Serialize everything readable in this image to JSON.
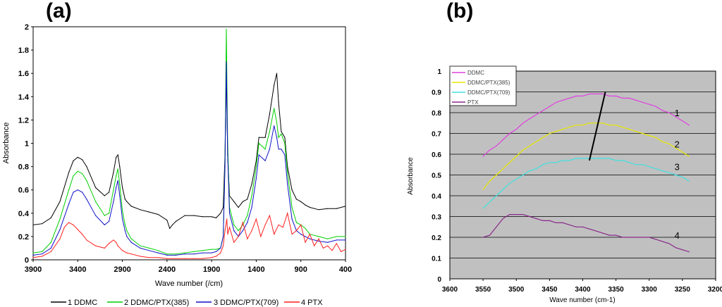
{
  "chart_data": [
    {
      "panel": "(a)",
      "type": "line",
      "xlabel": "Wave number (/cm)",
      "ylabel": "Absorbance",
      "xlim": [
        3900,
        400
      ],
      "ylim": [
        0,
        2
      ],
      "xticks": [
        "3900",
        "3400",
        "2900",
        "2400",
        "1900",
        "1400",
        "900",
        "400"
      ],
      "yticks": [
        "0",
        "0.2",
        "0.4",
        "0.6",
        "0.8",
        "1",
        "1.2",
        "1.4",
        "1.6",
        "1.8",
        "2"
      ],
      "legend_position": "bottom",
      "series": [
        {
          "name": "1 DDMC",
          "color": "#000000",
          "x": [
            3900,
            3800,
            3700,
            3600,
            3500,
            3450,
            3400,
            3350,
            3300,
            3200,
            3100,
            3050,
            3000,
            2970,
            2950,
            2930,
            2900,
            2870,
            2850,
            2800,
            2700,
            2600,
            2500,
            2400,
            2370,
            2340,
            2300,
            2200,
            2100,
            2000,
            1900,
            1850,
            1800,
            1770,
            1750,
            1735,
            1720,
            1700,
            1650,
            1600,
            1550,
            1500,
            1450,
            1400,
            1370,
            1300,
            1250,
            1200,
            1170,
            1150,
            1120,
            1080,
            1050,
            1000,
            950,
            900,
            850,
            800,
            700,
            600,
            500,
            400
          ],
          "y": [
            0.3,
            0.31,
            0.36,
            0.5,
            0.75,
            0.85,
            0.88,
            0.86,
            0.8,
            0.62,
            0.55,
            0.58,
            0.75,
            0.88,
            0.9,
            0.8,
            0.62,
            0.52,
            0.5,
            0.46,
            0.43,
            0.41,
            0.39,
            0.34,
            0.27,
            0.3,
            0.33,
            0.38,
            0.38,
            0.37,
            0.37,
            0.36,
            0.4,
            0.45,
            0.9,
            1.62,
            0.9,
            0.55,
            0.5,
            0.45,
            0.5,
            0.52,
            0.65,
            0.85,
            1.05,
            1.05,
            1.25,
            1.5,
            1.6,
            1.35,
            1.1,
            1.05,
            0.8,
            0.6,
            0.52,
            0.5,
            0.47,
            0.45,
            0.43,
            0.44,
            0.44,
            0.46
          ]
        },
        {
          "name": "2 DDMC/PTX(385)",
          "color": "#00d000",
          "x": [
            3900,
            3800,
            3700,
            3600,
            3500,
            3450,
            3400,
            3350,
            3300,
            3200,
            3100,
            3050,
            3000,
            2970,
            2950,
            2930,
            2900,
            2870,
            2850,
            2800,
            2700,
            2600,
            2500,
            2400,
            2300,
            2200,
            2100,
            2000,
            1900,
            1850,
            1800,
            1770,
            1750,
            1735,
            1720,
            1700,
            1650,
            1600,
            1550,
            1500,
            1450,
            1400,
            1370,
            1300,
            1250,
            1200,
            1170,
            1150,
            1120,
            1080,
            1050,
            1000,
            950,
            900,
            850,
            800,
            700,
            600,
            500,
            400
          ],
          "y": [
            0.06,
            0.07,
            0.15,
            0.35,
            0.6,
            0.72,
            0.76,
            0.74,
            0.68,
            0.5,
            0.38,
            0.4,
            0.6,
            0.72,
            0.78,
            0.65,
            0.42,
            0.3,
            0.25,
            0.18,
            0.12,
            0.1,
            0.08,
            0.05,
            0.05,
            0.06,
            0.07,
            0.08,
            0.09,
            0.09,
            0.1,
            0.2,
            0.85,
            1.98,
            1.0,
            0.45,
            0.3,
            0.25,
            0.3,
            0.38,
            0.55,
            0.8,
            1.0,
            0.95,
            1.1,
            1.3,
            1.18,
            1.05,
            1.08,
            1.0,
            0.75,
            0.45,
            0.32,
            0.3,
            0.27,
            0.22,
            0.2,
            0.18,
            0.2,
            0.2
          ]
        },
        {
          "name": "3 DDMC/PTX(709)",
          "color": "#1010c8",
          "x": [
            3900,
            3800,
            3700,
            3600,
            3500,
            3450,
            3400,
            3350,
            3300,
            3200,
            3100,
            3050,
            3000,
            2970,
            2950,
            2930,
            2900,
            2870,
            2850,
            2800,
            2700,
            2600,
            2500,
            2400,
            2300,
            2200,
            2100,
            2000,
            1900,
            1850,
            1800,
            1770,
            1750,
            1735,
            1720,
            1700,
            1650,
            1600,
            1550,
            1500,
            1450,
            1400,
            1370,
            1300,
            1250,
            1200,
            1170,
            1150,
            1120,
            1080,
            1050,
            1000,
            950,
            900,
            850,
            800,
            700,
            600,
            500,
            400
          ],
          "y": [
            0.04,
            0.05,
            0.1,
            0.26,
            0.48,
            0.58,
            0.6,
            0.58,
            0.52,
            0.38,
            0.3,
            0.33,
            0.5,
            0.62,
            0.68,
            0.55,
            0.35,
            0.25,
            0.2,
            0.15,
            0.1,
            0.08,
            0.06,
            0.04,
            0.04,
            0.05,
            0.05,
            0.06,
            0.06,
            0.07,
            0.1,
            0.2,
            0.8,
            1.7,
            0.9,
            0.4,
            0.25,
            0.2,
            0.25,
            0.32,
            0.45,
            0.7,
            0.9,
            0.85,
            0.95,
            1.15,
            1.05,
            0.95,
            0.95,
            0.9,
            0.65,
            0.35,
            0.25,
            0.22,
            0.2,
            0.18,
            0.16,
            0.15,
            0.17,
            0.17
          ]
        },
        {
          "name": "4 PTX",
          "color": "#ff2020",
          "x": [
            3900,
            3800,
            3700,
            3600,
            3550,
            3500,
            3450,
            3400,
            3350,
            3300,
            3200,
            3100,
            3050,
            3000,
            2970,
            2950,
            2900,
            2850,
            2800,
            2700,
            2600,
            2500,
            2400,
            2300,
            2200,
            2100,
            2000,
            1900,
            1850,
            1800,
            1770,
            1750,
            1730,
            1720,
            1700,
            1650,
            1600,
            1550,
            1500,
            1450,
            1400,
            1350,
            1300,
            1250,
            1200,
            1150,
            1100,
            1050,
            1000,
            950,
            900,
            850,
            800,
            750,
            700,
            650,
            600,
            550,
            500,
            450,
            400
          ],
          "y": [
            0.02,
            0.03,
            0.07,
            0.18,
            0.28,
            0.32,
            0.3,
            0.26,
            0.22,
            0.17,
            0.12,
            0.1,
            0.14,
            0.17,
            0.15,
            0.12,
            0.08,
            0.06,
            0.05,
            0.03,
            0.02,
            0.02,
            0.01,
            0.01,
            0.01,
            0.01,
            0.01,
            0.02,
            0.03,
            0.06,
            0.12,
            0.25,
            0.35,
            0.22,
            0.28,
            0.15,
            0.2,
            0.32,
            0.18,
            0.25,
            0.35,
            0.2,
            0.3,
            0.38,
            0.22,
            0.3,
            0.28,
            0.4,
            0.22,
            0.25,
            0.3,
            0.15,
            0.22,
            0.12,
            0.18,
            0.1,
            0.12,
            0.08,
            0.14,
            0.07,
            0.09
          ]
        }
      ]
    },
    {
      "panel": "(b)",
      "type": "line",
      "xlabel": "Wave number (cm-1)",
      "ylabel": "Absorbance",
      "xlim": [
        3600,
        3200
      ],
      "ylim": [
        0,
        1
      ],
      "xticks": [
        "3600",
        "3550",
        "3500",
        "3450",
        "3400",
        "3350",
        "3300",
        "3250",
        "3200"
      ],
      "yticks": [
        "0",
        "0.1",
        "0.2",
        "0.3",
        "0.4",
        "0.5",
        "0.6",
        "0.7",
        "0.8",
        "0.9",
        "1"
      ],
      "legend_position": "top-left",
      "plot_background": "#c0c0c0",
      "series": [
        {
          "name": "DDMC",
          "color": "#e040e0",
          "label": "1",
          "x": [
            3550,
            3540,
            3530,
            3520,
            3510,
            3500,
            3490,
            3480,
            3470,
            3460,
            3450,
            3440,
            3430,
            3420,
            3410,
            3400,
            3390,
            3380,
            3370,
            3360,
            3350,
            3340,
            3330,
            3320,
            3310,
            3300,
            3290,
            3280,
            3270,
            3260,
            3250,
            3240
          ],
          "y": [
            0.59,
            0.62,
            0.64,
            0.67,
            0.7,
            0.72,
            0.75,
            0.77,
            0.79,
            0.81,
            0.83,
            0.85,
            0.86,
            0.87,
            0.88,
            0.88,
            0.89,
            0.89,
            0.89,
            0.88,
            0.88,
            0.87,
            0.87,
            0.86,
            0.85,
            0.84,
            0.83,
            0.81,
            0.8,
            0.78,
            0.76,
            0.74
          ]
        },
        {
          "name": "DDMC/PTX(385)",
          "color": "#e8e800",
          "label": "2",
          "x": [
            3550,
            3540,
            3530,
            3520,
            3510,
            3500,
            3490,
            3480,
            3470,
            3460,
            3450,
            3440,
            3430,
            3420,
            3410,
            3400,
            3390,
            3380,
            3370,
            3360,
            3350,
            3340,
            3330,
            3320,
            3310,
            3300,
            3290,
            3280,
            3270,
            3260,
            3250,
            3240
          ],
          "y": [
            0.43,
            0.47,
            0.5,
            0.53,
            0.56,
            0.59,
            0.62,
            0.64,
            0.66,
            0.68,
            0.7,
            0.71,
            0.72,
            0.73,
            0.74,
            0.74,
            0.75,
            0.75,
            0.75,
            0.74,
            0.74,
            0.73,
            0.72,
            0.71,
            0.7,
            0.69,
            0.68,
            0.66,
            0.65,
            0.63,
            0.61,
            0.59
          ]
        },
        {
          "name": "DDMC/PTX(709)",
          "color": "#40e0e0",
          "label": "3",
          "x": [
            3550,
            3540,
            3530,
            3520,
            3510,
            3500,
            3490,
            3480,
            3470,
            3460,
            3450,
            3440,
            3430,
            3420,
            3410,
            3400,
            3390,
            3380,
            3370,
            3360,
            3350,
            3340,
            3330,
            3320,
            3310,
            3300,
            3290,
            3280,
            3270,
            3260,
            3250,
            3240
          ],
          "y": [
            0.34,
            0.37,
            0.4,
            0.43,
            0.46,
            0.48,
            0.5,
            0.52,
            0.53,
            0.55,
            0.56,
            0.56,
            0.57,
            0.57,
            0.58,
            0.58,
            0.58,
            0.58,
            0.58,
            0.58,
            0.57,
            0.57,
            0.56,
            0.55,
            0.55,
            0.54,
            0.53,
            0.52,
            0.51,
            0.5,
            0.49,
            0.47
          ]
        },
        {
          "name": "PTX",
          "color": "#8a2a8a",
          "label": "4",
          "x": [
            3550,
            3540,
            3530,
            3520,
            3510,
            3500,
            3490,
            3480,
            3470,
            3460,
            3450,
            3440,
            3430,
            3420,
            3410,
            3400,
            3390,
            3380,
            3370,
            3360,
            3350,
            3340,
            3330,
            3320,
            3310,
            3300,
            3290,
            3280,
            3270,
            3260,
            3250,
            3240
          ],
          "y": [
            0.2,
            0.21,
            0.25,
            0.29,
            0.31,
            0.31,
            0.31,
            0.3,
            0.29,
            0.28,
            0.28,
            0.27,
            0.27,
            0.26,
            0.25,
            0.25,
            0.24,
            0.23,
            0.22,
            0.21,
            0.21,
            0.2,
            0.2,
            0.2,
            0.2,
            0.2,
            0.19,
            0.18,
            0.17,
            0.15,
            0.14,
            0.13
          ]
        }
      ],
      "annotation_line": {
        "from": [
          3390,
          0.57
        ],
        "to": [
          3366,
          0.9
        ]
      }
    }
  ]
}
